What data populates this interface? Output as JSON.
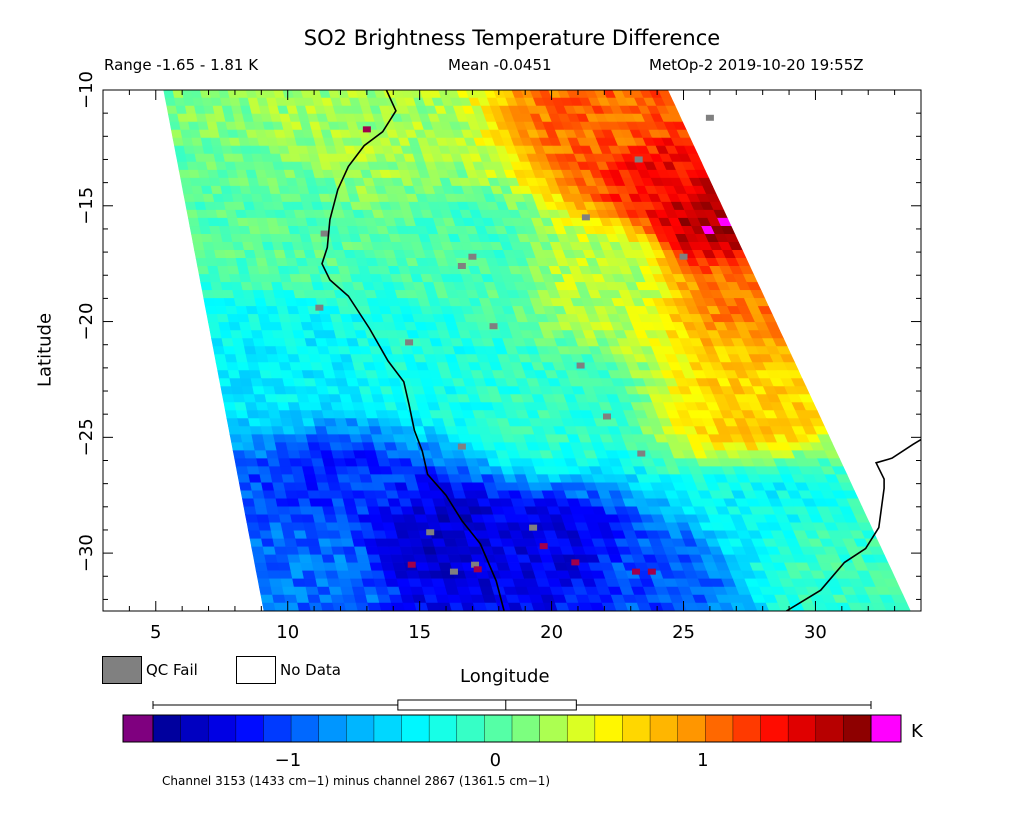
{
  "header": {
    "title": "SO2 Brightness Temperature Difference",
    "range": "Range -1.65 - 1.81 K",
    "mean": "Mean -0.0451",
    "satellite_time": "MetOp-2 2019-10-20 19:55Z"
  },
  "legend": {
    "qc_fail_label": "QC Fail",
    "qc_fail_color": "#808080",
    "no_data_label": "No Data",
    "no_data_color": "#ffffff"
  },
  "colorbar": {
    "unit": "K",
    "range": [
      -1.65,
      1.81
    ],
    "ticks": [
      {
        "value": -1,
        "label": "−1"
      },
      {
        "value": 0,
        "label": "0"
      },
      {
        "value": 1,
        "label": "1"
      }
    ],
    "under_color": "#7f007f",
    "over_color": "#ff00ff",
    "colormap": [
      "#00008c",
      "#0000ff",
      "#0096ff",
      "#00ffff",
      "#64ff96",
      "#ffff00",
      "#ff9600",
      "#ff0000",
      "#7a0000"
    ],
    "boxplot": {
      "min": -1.65,
      "q1": -0.47,
      "median": 0.05,
      "q3": 0.39,
      "max": 1.81
    }
  },
  "caption": "Channel 3153 (1433 cm−1) minus channel 2867 (1361.5 cm−1)",
  "chart_data": {
    "type": "heatmap",
    "title": "SO2 Brightness Temperature Difference",
    "xlabel": "Longitude",
    "ylabel": "Latitude",
    "xlim": [
      3,
      34
    ],
    "ylim": [
      -32.5,
      -10
    ],
    "x_ticks": [
      {
        "value": 5,
        "label": "5"
      },
      {
        "value": 10,
        "label": "10"
      },
      {
        "value": 15,
        "label": "15"
      },
      {
        "value": 20,
        "label": "20"
      },
      {
        "value": 25,
        "label": "25"
      },
      {
        "value": 30,
        "label": "30"
      }
    ],
    "y_ticks": [
      {
        "value": -10,
        "label": "−10"
      },
      {
        "value": -15,
        "label": "−15"
      },
      {
        "value": -20,
        "label": "−20"
      },
      {
        "value": -25,
        "label": "−25"
      },
      {
        "value": -30,
        "label": "−30"
      }
    ],
    "swath_corners": [
      [
        5.3,
        -10
      ],
      [
        24.4,
        -10
      ],
      [
        33.6,
        -32.5
      ],
      [
        9.1,
        -32.5
      ]
    ],
    "grid_dims": {
      "cols": 55,
      "rows": 65
    },
    "field_anchors": [
      {
        "lon": 24.5,
        "lat": -13.5,
        "value": 1.4
      },
      {
        "lon": 26.5,
        "lat": -15.5,
        "value": 1.7
      },
      {
        "lon": 23.0,
        "lat": -11.5,
        "value": 1.1
      },
      {
        "lon": 28.0,
        "lat": -18.5,
        "value": 1.0
      },
      {
        "lon": 27.5,
        "lat": -24.0,
        "value": 0.7
      },
      {
        "lon": 22.0,
        "lat": -18.0,
        "value": 0.3
      },
      {
        "lon": 17.0,
        "lat": -17.0,
        "value": -0.05
      },
      {
        "lon": 13.0,
        "lat": -12.0,
        "value": 0.25
      },
      {
        "lon": 10.0,
        "lat": -16.0,
        "value": 0.0
      },
      {
        "lon": 15.0,
        "lat": -22.0,
        "value": -0.25
      },
      {
        "lon": 10.0,
        "lat": -22.0,
        "value": -0.4
      },
      {
        "lon": 20.0,
        "lat": -24.0,
        "value": -0.15
      },
      {
        "lon": 12.0,
        "lat": -27.0,
        "value": -1.1
      },
      {
        "lon": 16.0,
        "lat": -29.5,
        "value": -1.4
      },
      {
        "lon": 20.0,
        "lat": -30.0,
        "value": -1.3
      },
      {
        "lon": 24.0,
        "lat": -31.0,
        "value": -1.0
      },
      {
        "lon": 28.0,
        "lat": -28.0,
        "value": -0.35
      },
      {
        "lon": 30.5,
        "lat": -30.0,
        "value": -0.1
      },
      {
        "lon": 11.0,
        "lat": -31.0,
        "value": -0.9
      }
    ],
    "qc_fail_points": [
      [
        11.4,
        -16.2
      ],
      [
        11.2,
        -19.4
      ],
      [
        14.6,
        -20.9
      ],
      [
        16.6,
        -17.6
      ],
      [
        17.0,
        -17.2
      ],
      [
        17.8,
        -20.2
      ],
      [
        21.3,
        -15.5
      ],
      [
        23.3,
        -13.0
      ],
      [
        26.0,
        -11.2
      ],
      [
        25.0,
        -17.2
      ],
      [
        21.1,
        -21.9
      ],
      [
        22.1,
        -24.1
      ],
      [
        23.4,
        -25.7
      ],
      [
        16.6,
        -25.4
      ],
      [
        15.4,
        -29.1
      ],
      [
        16.3,
        -30.8
      ],
      [
        17.1,
        -30.5
      ],
      [
        19.3,
        -28.9
      ]
    ],
    "extreme_points": [
      [
        13.0,
        -11.7
      ],
      [
        14.7,
        -30.5
      ],
      [
        17.2,
        -30.7
      ],
      [
        19.7,
        -29.7
      ],
      [
        20.9,
        -30.4
      ],
      [
        23.2,
        -30.8
      ],
      [
        23.8,
        -30.8
      ]
    ],
    "coastline": [
      [
        13.7,
        -9.9
      ],
      [
        14.1,
        -10.9
      ],
      [
        13.6,
        -11.8
      ],
      [
        12.9,
        -12.4
      ],
      [
        12.3,
        -13.3
      ],
      [
        11.9,
        -14.3
      ],
      [
        11.6,
        -15.6
      ],
      [
        11.5,
        -16.8
      ],
      [
        11.3,
        -17.5
      ],
      [
        11.6,
        -18.2
      ],
      [
        12.3,
        -18.9
      ],
      [
        13.1,
        -20.3
      ],
      [
        13.8,
        -21.7
      ],
      [
        14.4,
        -22.6
      ],
      [
        14.6,
        -23.6
      ],
      [
        14.8,
        -24.7
      ],
      [
        15.1,
        -25.6
      ],
      [
        15.3,
        -26.6
      ],
      [
        16.0,
        -27.5
      ],
      [
        16.6,
        -28.6
      ],
      [
        17.3,
        -29.6
      ],
      [
        17.9,
        -31.2
      ],
      [
        18.2,
        -32.5
      ]
    ],
    "coastline_east": [
      [
        28.9,
        -32.5
      ],
      [
        30.2,
        -31.6
      ],
      [
        31.1,
        -30.4
      ],
      [
        31.9,
        -29.8
      ],
      [
        32.4,
        -28.9
      ],
      [
        32.6,
        -27.2
      ],
      [
        32.6,
        -26.8
      ],
      [
        32.3,
        -26.1
      ],
      [
        32.9,
        -25.9
      ],
      [
        33.7,
        -25.3
      ],
      [
        34.0,
        -25.1
      ]
    ]
  }
}
